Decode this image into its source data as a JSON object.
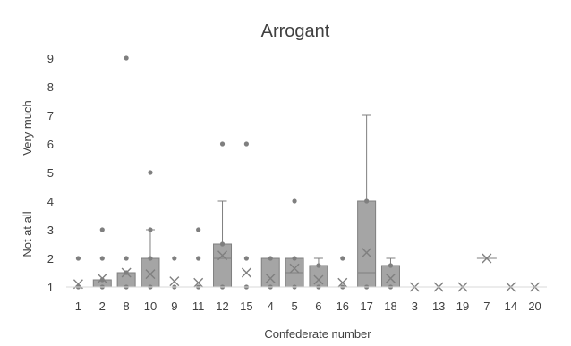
{
  "chart_data": {
    "type": "box",
    "title": "Arrogant",
    "xlabel": "Confederate number",
    "ylabel_top": "Very much",
    "ylabel_bottom": "Not at all",
    "ylim": [
      1,
      9
    ],
    "yticks": [
      1,
      2,
      3,
      4,
      5,
      6,
      7,
      8,
      9
    ],
    "grid": false,
    "colors": {
      "box": "#a5a5a5",
      "box_edge": "#7f7f7f",
      "marker": "#7f7f7f",
      "text": "#404040",
      "axis": "#d9d9d9"
    },
    "categories": [
      "1",
      "2",
      "8",
      "10",
      "9",
      "11",
      "12",
      "15",
      "4",
      "5",
      "6",
      "16",
      "17",
      "18",
      "3",
      "13",
      "19",
      "7",
      "14",
      "20"
    ],
    "boxes": [
      {
        "q1": 1,
        "median": 1,
        "q3": 1,
        "whisker_low": 1,
        "whisker_high": 1,
        "mean": 1.1,
        "outliers": [
          2
        ]
      },
      {
        "q1": 1,
        "median": 1,
        "q3": 1.25,
        "whisker_low": 1,
        "whisker_high": 1.25,
        "mean": 1.3,
        "outliers": [
          2,
          3
        ]
      },
      {
        "q1": 1,
        "median": 1,
        "q3": 1.5,
        "whisker_low": 1,
        "whisker_high": 1.5,
        "mean": 1.5,
        "outliers": [
          2,
          9
        ]
      },
      {
        "q1": 1,
        "median": 1,
        "q3": 2,
        "whisker_low": 1,
        "whisker_high": 3,
        "mean": 1.45,
        "outliers": [
          3,
          5
        ]
      },
      {
        "q1": 1,
        "median": 1,
        "q3": 1,
        "whisker_low": 1,
        "whisker_high": 1,
        "mean": 1.2,
        "outliers": [
          2
        ]
      },
      {
        "q1": 1,
        "median": 1,
        "q3": 1,
        "whisker_low": 1,
        "whisker_high": 1,
        "mean": 1.15,
        "outliers": [
          2,
          3
        ]
      },
      {
        "q1": 1,
        "median": 2,
        "q3": 2.5,
        "whisker_low": 1,
        "whisker_high": 4,
        "mean": 2.1,
        "outliers": [
          6
        ]
      },
      {
        "q1": 1,
        "median": 1,
        "q3": 1,
        "whisker_low": 1,
        "whisker_high": 1,
        "mean": 1.5,
        "outliers": [
          2,
          6
        ]
      },
      {
        "q1": 1,
        "median": 1,
        "q3": 2,
        "whisker_low": 1,
        "whisker_high": 2,
        "mean": 1.3,
        "outliers": []
      },
      {
        "q1": 1,
        "median": 1.5,
        "q3": 2,
        "whisker_low": 1,
        "whisker_high": 2,
        "mean": 1.65,
        "outliers": [
          4
        ]
      },
      {
        "q1": 1,
        "median": 1,
        "q3": 1.75,
        "whisker_low": 1,
        "whisker_high": 2,
        "mean": 1.25,
        "outliers": []
      },
      {
        "q1": 1,
        "median": 1,
        "q3": 1,
        "whisker_low": 1,
        "whisker_high": 1,
        "mean": 1.15,
        "outliers": [
          2
        ]
      },
      {
        "q1": 1,
        "median": 1.5,
        "q3": 4,
        "whisker_low": 1,
        "whisker_high": 7,
        "mean": 2.2,
        "outliers": []
      },
      {
        "q1": 1,
        "median": 1,
        "q3": 1.75,
        "whisker_low": 1,
        "whisker_high": 2,
        "mean": 1.3,
        "outliers": []
      },
      {
        "q1": 1,
        "median": 1,
        "q3": 1,
        "whisker_low": 1,
        "whisker_high": 1,
        "mean": 1,
        "outliers": []
      },
      {
        "q1": 1,
        "median": 1,
        "q3": 1,
        "whisker_low": 1,
        "whisker_high": 1,
        "mean": 1,
        "outliers": []
      },
      {
        "q1": 1,
        "median": 1,
        "q3": 1,
        "whisker_low": 1,
        "whisker_high": 1,
        "mean": 1,
        "outliers": []
      },
      {
        "q1": 2,
        "median": 2,
        "q3": 2,
        "whisker_low": 2,
        "whisker_high": 2,
        "mean": 2,
        "outliers": []
      },
      {
        "q1": 1,
        "median": 1,
        "q3": 1,
        "whisker_low": 1,
        "whisker_high": 1,
        "mean": 1,
        "outliers": []
      },
      {
        "q1": 1,
        "median": 1,
        "q3": 1,
        "whisker_low": 1,
        "whisker_high": 1,
        "mean": 1,
        "outliers": []
      }
    ]
  }
}
